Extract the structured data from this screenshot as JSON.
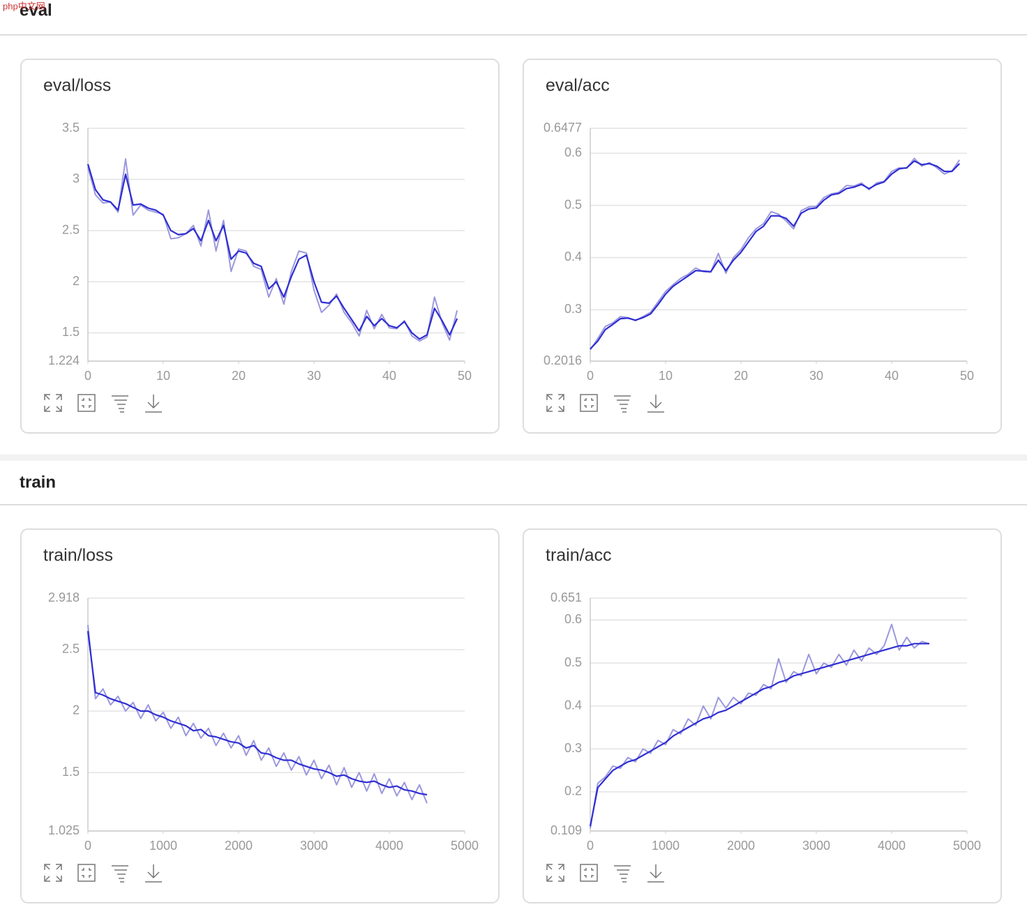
{
  "watermark": "php中文网",
  "sections": [
    {
      "title": "eval"
    },
    {
      "title": "train"
    }
  ],
  "chart_data": [
    {
      "type": "line",
      "title": "eval/loss",
      "x": [
        0,
        1,
        2,
        3,
        4,
        5,
        6,
        7,
        8,
        9,
        10,
        11,
        12,
        13,
        14,
        15,
        16,
        17,
        18,
        19,
        20,
        21,
        22,
        23,
        24,
        25,
        26,
        27,
        28,
        29,
        30,
        31,
        32,
        33,
        34,
        35,
        36,
        37,
        38,
        39,
        40,
        41,
        42,
        43,
        44,
        45,
        46,
        47,
        48,
        49
      ],
      "series": [
        {
          "color": "#9b98dd",
          "values": [
            3.12,
            2.85,
            2.77,
            2.78,
            2.68,
            3.2,
            2.65,
            2.75,
            2.7,
            2.68,
            2.66,
            2.42,
            2.43,
            2.47,
            2.55,
            2.35,
            2.7,
            2.3,
            2.6,
            2.1,
            2.32,
            2.3,
            2.15,
            2.12,
            1.85,
            2.03,
            1.78,
            2.1,
            2.3,
            2.28,
            1.92,
            1.7,
            1.77,
            1.88,
            1.7,
            1.6,
            1.47,
            1.72,
            1.54,
            1.68,
            1.55,
            1.54,
            1.62,
            1.47,
            1.42,
            1.46,
            1.85,
            1.6,
            1.43,
            1.72
          ]
        },
        {
          "color": "#2f2ed3",
          "values": [
            3.15,
            2.9,
            2.8,
            2.78,
            2.7,
            3.05,
            2.75,
            2.76,
            2.72,
            2.7,
            2.65,
            2.5,
            2.46,
            2.47,
            2.52,
            2.4,
            2.6,
            2.4,
            2.55,
            2.22,
            2.3,
            2.28,
            2.18,
            2.15,
            1.93,
            2.0,
            1.85,
            2.05,
            2.22,
            2.26,
            2.0,
            1.8,
            1.79,
            1.86,
            1.74,
            1.63,
            1.52,
            1.66,
            1.57,
            1.64,
            1.57,
            1.55,
            1.61,
            1.5,
            1.44,
            1.48,
            1.74,
            1.62,
            1.48,
            1.64
          ]
        }
      ],
      "xlim": [
        0,
        50
      ],
      "xticks": [
        0,
        10,
        20,
        30,
        40,
        50
      ],
      "ylim": [
        1.224,
        3.5
      ],
      "yticks": [
        1.224,
        1.5,
        2,
        2.5,
        3,
        3.5
      ],
      "grid": true
    },
    {
      "type": "line",
      "title": "eval/acc",
      "x": [
        0,
        1,
        2,
        3,
        4,
        5,
        6,
        7,
        8,
        9,
        10,
        11,
        12,
        13,
        14,
        15,
        16,
        17,
        18,
        19,
        20,
        21,
        22,
        23,
        24,
        25,
        26,
        27,
        28,
        29,
        30,
        31,
        32,
        33,
        34,
        35,
        36,
        37,
        38,
        39,
        40,
        41,
        42,
        43,
        44,
        45,
        46,
        47,
        48,
        49
      ],
      "series": [
        {
          "color": "#9b98dd",
          "values": [
            0.223,
            0.245,
            0.268,
            0.275,
            0.287,
            0.285,
            0.279,
            0.287,
            0.295,
            0.315,
            0.335,
            0.348,
            0.36,
            0.368,
            0.38,
            0.373,
            0.372,
            0.408,
            0.37,
            0.4,
            0.415,
            0.438,
            0.455,
            0.465,
            0.488,
            0.483,
            0.47,
            0.455,
            0.49,
            0.497,
            0.498,
            0.515,
            0.522,
            0.525,
            0.538,
            0.537,
            0.543,
            0.53,
            0.543,
            0.546,
            0.565,
            0.572,
            0.571,
            0.59,
            0.575,
            0.582,
            0.572,
            0.56,
            0.566,
            0.587
          ]
        },
        {
          "color": "#2f2ed3",
          "values": [
            0.225,
            0.24,
            0.262,
            0.272,
            0.283,
            0.284,
            0.28,
            0.285,
            0.292,
            0.31,
            0.33,
            0.345,
            0.355,
            0.365,
            0.375,
            0.374,
            0.373,
            0.395,
            0.375,
            0.395,
            0.41,
            0.43,
            0.45,
            0.46,
            0.48,
            0.48,
            0.475,
            0.46,
            0.485,
            0.493,
            0.495,
            0.51,
            0.52,
            0.523,
            0.532,
            0.535,
            0.54,
            0.532,
            0.54,
            0.545,
            0.56,
            0.57,
            0.572,
            0.585,
            0.578,
            0.58,
            0.575,
            0.565,
            0.565,
            0.58
          ]
        }
      ],
      "xlim": [
        0,
        50
      ],
      "xticks": [
        0,
        10,
        20,
        30,
        40,
        50
      ],
      "ylim": [
        0.2016,
        0.6477
      ],
      "yticks": [
        0.2016,
        0.3,
        0.4,
        0.5,
        0.6,
        0.6477
      ],
      "grid": true
    },
    {
      "type": "line",
      "title": "train/loss",
      "x": [
        0,
        100,
        200,
        300,
        400,
        500,
        600,
        700,
        800,
        900,
        1000,
        1100,
        1200,
        1300,
        1400,
        1500,
        1600,
        1700,
        1800,
        1900,
        2000,
        2100,
        2200,
        2300,
        2400,
        2500,
        2600,
        2700,
        2800,
        2900,
        3000,
        3100,
        3200,
        3300,
        3400,
        3500,
        3600,
        3700,
        3800,
        3900,
        4000,
        4100,
        4200,
        4300,
        4400,
        4500
      ],
      "series": [
        {
          "color": "#9b98dd",
          "values": [
            2.7,
            2.1,
            2.18,
            2.05,
            2.12,
            2.0,
            2.07,
            1.94,
            2.05,
            1.92,
            1.99,
            1.86,
            1.95,
            1.8,
            1.9,
            1.78,
            1.86,
            1.72,
            1.82,
            1.7,
            1.8,
            1.64,
            1.76,
            1.6,
            1.7,
            1.55,
            1.66,
            1.52,
            1.63,
            1.48,
            1.6,
            1.45,
            1.56,
            1.4,
            1.54,
            1.38,
            1.5,
            1.35,
            1.49,
            1.33,
            1.45,
            1.31,
            1.42,
            1.28,
            1.4,
            1.25
          ]
        },
        {
          "color": "#2f2ed3",
          "values": [
            2.65,
            2.15,
            2.13,
            2.1,
            2.08,
            2.06,
            2.03,
            2.0,
            2.0,
            1.97,
            1.95,
            1.92,
            1.9,
            1.88,
            1.84,
            1.85,
            1.8,
            1.79,
            1.77,
            1.75,
            1.74,
            1.7,
            1.72,
            1.66,
            1.65,
            1.62,
            1.6,
            1.6,
            1.57,
            1.55,
            1.53,
            1.52,
            1.5,
            1.47,
            1.48,
            1.45,
            1.43,
            1.42,
            1.43,
            1.4,
            1.38,
            1.39,
            1.36,
            1.35,
            1.33,
            1.32
          ]
        }
      ],
      "xlim": [
        0,
        5000
      ],
      "xticks": [
        0,
        1000,
        2000,
        3000,
        4000,
        5000
      ],
      "ylim": [
        1.025,
        2.918
      ],
      "yticks": [
        1.025,
        1.5,
        2,
        2.5,
        2.918
      ],
      "grid": true
    },
    {
      "type": "line",
      "title": "train/acc",
      "x": [
        0,
        100,
        200,
        300,
        400,
        500,
        600,
        700,
        800,
        900,
        1000,
        1100,
        1200,
        1300,
        1400,
        1500,
        1600,
        1700,
        1800,
        1900,
        2000,
        2100,
        2200,
        2300,
        2400,
        2500,
        2600,
        2700,
        2800,
        2900,
        3000,
        3100,
        3200,
        3300,
        3400,
        3500,
        3600,
        3700,
        3800,
        3900,
        4000,
        4100,
        4200,
        4300,
        4400,
        4500
      ],
      "series": [
        {
          "color": "#9b98dd",
          "values": [
            0.115,
            0.22,
            0.235,
            0.26,
            0.255,
            0.28,
            0.27,
            0.3,
            0.29,
            0.32,
            0.31,
            0.345,
            0.335,
            0.37,
            0.355,
            0.4,
            0.37,
            0.42,
            0.395,
            0.42,
            0.405,
            0.43,
            0.425,
            0.45,
            0.44,
            0.51,
            0.455,
            0.48,
            0.47,
            0.52,
            0.475,
            0.5,
            0.49,
            0.52,
            0.495,
            0.53,
            0.505,
            0.535,
            0.52,
            0.54,
            0.59,
            0.53,
            0.56,
            0.535,
            0.55,
            0.545
          ]
        },
        {
          "color": "#2f2ed3",
          "values": [
            0.12,
            0.21,
            0.23,
            0.25,
            0.26,
            0.27,
            0.275,
            0.285,
            0.295,
            0.305,
            0.315,
            0.33,
            0.34,
            0.35,
            0.36,
            0.37,
            0.375,
            0.385,
            0.39,
            0.4,
            0.41,
            0.42,
            0.43,
            0.44,
            0.445,
            0.455,
            0.46,
            0.47,
            0.475,
            0.48,
            0.485,
            0.49,
            0.495,
            0.5,
            0.505,
            0.51,
            0.515,
            0.52,
            0.525,
            0.53,
            0.535,
            0.54,
            0.54,
            0.545,
            0.545,
            0.545
          ]
        }
      ],
      "xlim": [
        0,
        5000
      ],
      "xticks": [
        0,
        1000,
        2000,
        3000,
        4000,
        5000
      ],
      "ylim": [
        0.109,
        0.651
      ],
      "yticks": [
        0.109,
        0.2,
        0.3,
        0.4,
        0.5,
        0.6,
        0.651
      ],
      "grid": true
    }
  ]
}
